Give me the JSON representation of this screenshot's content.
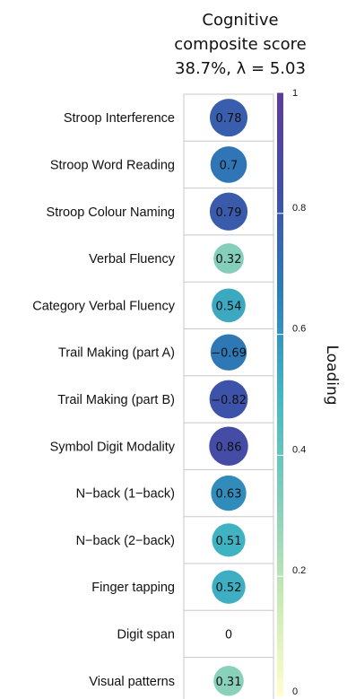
{
  "chart_data": {
    "type": "bubble-matrix",
    "title_lines": [
      "Cognitive",
      "composite score",
      "38.7%, λ = 5.03"
    ],
    "column": "Cognitive composite score",
    "rows": [
      {
        "label": "Stroop Interference",
        "value": "0.78",
        "loading": 0.78
      },
      {
        "label": "Stroop Word Reading",
        "value": "0.7",
        "loading": 0.7
      },
      {
        "label": "Stroop Colour Naming",
        "value": "0.79",
        "loading": 0.79
      },
      {
        "label": "Verbal Fluency",
        "value": "0.32",
        "loading": 0.32
      },
      {
        "label": "Category Verbal Fluency",
        "value": "0.54",
        "loading": 0.54
      },
      {
        "label": "Trail Making (part A)",
        "value": "−0.69",
        "loading": -0.69
      },
      {
        "label": "Trail Making (part B)",
        "value": "−0.82",
        "loading": -0.82
      },
      {
        "label": "Symbol Digit Modality",
        "value": "0.86",
        "loading": 0.86
      },
      {
        "label": "N−back (1−back)",
        "value": "0.63",
        "loading": 0.63
      },
      {
        "label": "N−back (2−back)",
        "value": "0.51",
        "loading": 0.51
      },
      {
        "label": "Finger tapping",
        "value": "0.52",
        "loading": 0.52
      },
      {
        "label": "Digit span",
        "value": "0",
        "loading": 0
      },
      {
        "label": "Visual patterns",
        "value": "0.31",
        "loading": 0.31
      }
    ],
    "colorbar": {
      "title": "Loading",
      "range": [
        0,
        1
      ],
      "ticks": [
        {
          "value": 0,
          "label": "0"
        },
        {
          "value": 0.2,
          "label": "0.2"
        },
        {
          "value": 0.4,
          "label": "0.4"
        },
        {
          "value": 0.6,
          "label": "0.6"
        },
        {
          "value": 0.8,
          "label": "0.8"
        },
        {
          "value": 1,
          "label": "1"
        }
      ],
      "colors": [
        "#ffffcc",
        "#c7e9b4",
        "#7fcdbb",
        "#41b6c4",
        "#2c7fb8",
        "#3f4fa8",
        "#5e3c99"
      ]
    }
  }
}
